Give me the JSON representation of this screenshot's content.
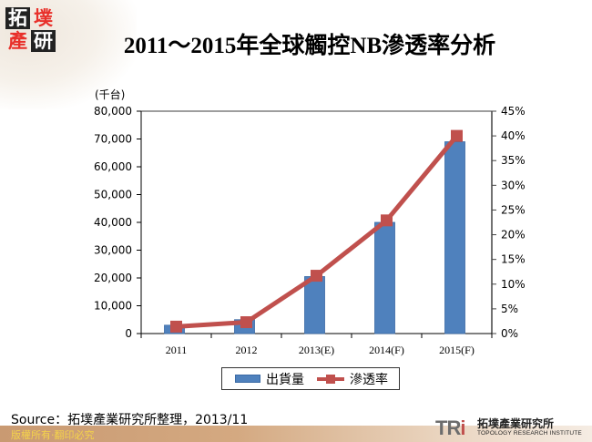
{
  "header": {
    "logo_chars": [
      "拓",
      "墣",
      "產",
      "研"
    ],
    "title": "2011～2015年全球觸控NB滲透率分析"
  },
  "chart_data": {
    "type": "bar",
    "title": "2011～2015年全球觸控NB滲透率分析",
    "xlabel": "",
    "ylabel": "(千台)",
    "y2label": "",
    "categories": [
      "2011",
      "2012",
      "2013(E)",
      "2014(F)",
      "2015(F)"
    ],
    "series": [
      {
        "name": "出貨量",
        "type": "bar",
        "axis": "left",
        "color": "#4f81bd",
        "values": [
          3000,
          5000,
          20500,
          40000,
          69000
        ]
      },
      {
        "name": "滲透率",
        "type": "line",
        "axis": "right",
        "color": "#c0504d",
        "marker": "square",
        "values": [
          1.4,
          2.3,
          11.7,
          22.9,
          40.0
        ]
      }
    ],
    "ylim": [
      0,
      80000
    ],
    "y_ticks": [
      "0",
      "10,000",
      "20,000",
      "30,000",
      "40,000",
      "50,000",
      "60,000",
      "70,000",
      "80,000"
    ],
    "y2lim": [
      0,
      45
    ],
    "y2_ticks": [
      "0%",
      "5%",
      "10%",
      "15%",
      "20%",
      "25%",
      "30%",
      "35%",
      "40%",
      "45%"
    ],
    "grid": false,
    "legend_position": "bottom"
  },
  "legend": {
    "bar_label": "出貨量",
    "line_label": "滲透率"
  },
  "footer": {
    "source": "Source：拓墣產業研究所整理，2013/11",
    "copyright": "版權所有‧翻印必究",
    "org_mark": "TRi",
    "org_name_cn": "拓墣產業研究所",
    "org_name_en": "TOPOLOGY RESEARCH INSTITUTE"
  }
}
